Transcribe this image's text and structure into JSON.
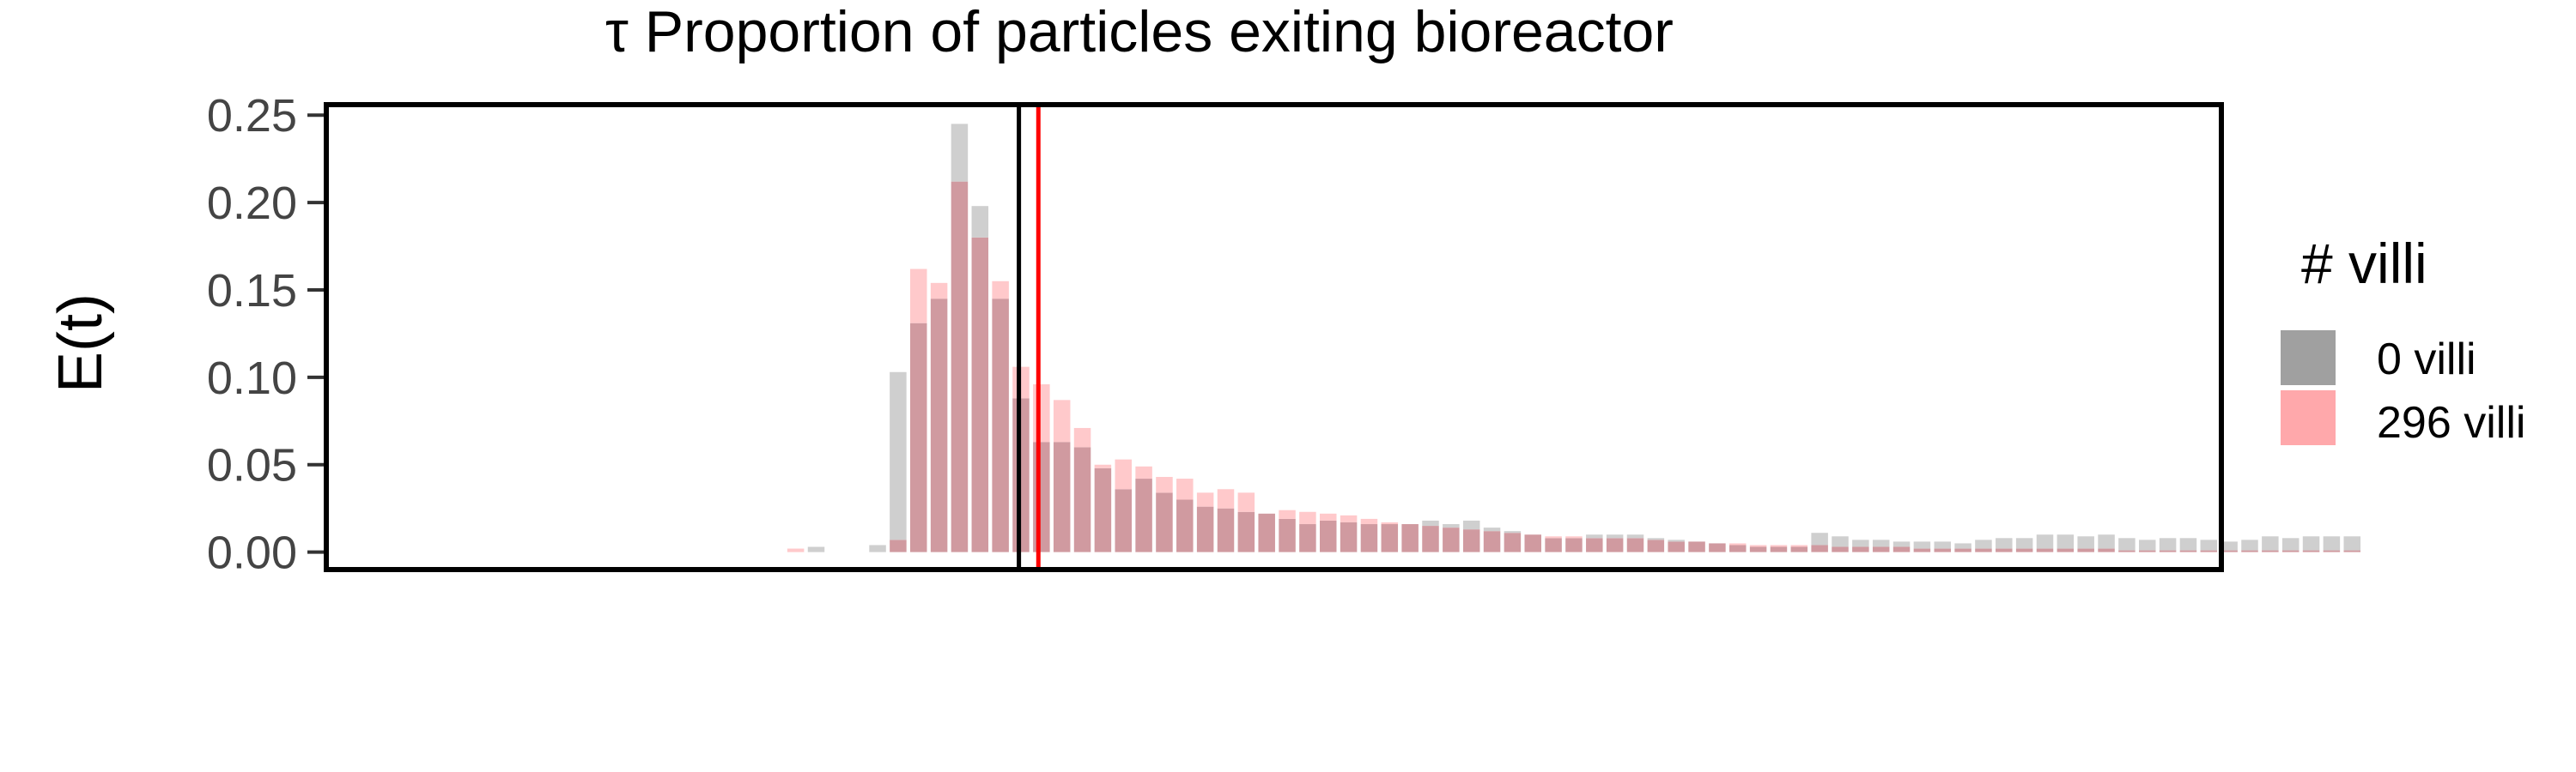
{
  "chart_data": {
    "type": "bar",
    "title": "τ Proportion of particles exiting bioreactor",
    "ylabel": "E(t)",
    "xlabel": "",
    "ylim": [
      -0.01,
      0.256
    ],
    "yticks": [
      0.0,
      0.05,
      0.1,
      0.15,
      0.2,
      0.25
    ],
    "ytick_labels": [
      "0.00",
      "0.05",
      "0.10",
      "0.15",
      "0.20",
      "0.25"
    ],
    "grid": false,
    "bin_count": 86,
    "legend": {
      "title": "# villi",
      "position": "right",
      "entries": [
        "0 villi",
        "296 villi"
      ]
    },
    "series": [
      {
        "name": "0 villi",
        "color": "#a0a0a0",
        "overlay_color": "#d09aa0",
        "values": [
          0,
          0,
          0,
          0,
          0,
          0,
          0,
          0,
          0,
          0,
          0.003,
          0,
          0,
          0.004,
          0.103,
          0.131,
          0.145,
          0.245,
          0.198,
          0.145,
          0.088,
          0.063,
          0.063,
          0.06,
          0.048,
          0.036,
          0.042,
          0.034,
          0.03,
          0.026,
          0.025,
          0.023,
          0.022,
          0.019,
          0.016,
          0.018,
          0.017,
          0.016,
          0.016,
          0.016,
          0.018,
          0.016,
          0.018,
          0.014,
          0.012,
          0.01,
          0.008,
          0.008,
          0.01,
          0.01,
          0.01,
          0.008,
          0.007,
          0.006,
          0.005,
          0.004,
          0.003,
          0.003,
          0.003,
          0.011,
          0.009,
          0.007,
          0.007,
          0.006,
          0.006,
          0.006,
          0.005,
          0.007,
          0.008,
          0.008,
          0.01,
          0.01,
          0.009,
          0.01,
          0.008,
          0.007,
          0.008,
          0.008,
          0.007,
          0.006,
          0.007,
          0.009,
          0.008,
          0.009,
          0.009,
          0.009
        ]
      },
      {
        "name": "296 villi",
        "color": "#ffa8ab",
        "values": [
          0,
          0,
          0,
          0,
          0,
          0,
          0,
          0,
          0,
          0.002,
          0,
          0,
          0,
          0,
          0.007,
          0.162,
          0.154,
          0.212,
          0.18,
          0.155,
          0.106,
          0.096,
          0.087,
          0.071,
          0.05,
          0.053,
          0.049,
          0.043,
          0.042,
          0.034,
          0.036,
          0.034,
          0.022,
          0.024,
          0.023,
          0.022,
          0.021,
          0.019,
          0.017,
          0.016,
          0.015,
          0.014,
          0.013,
          0.012,
          0.011,
          0.01,
          0.009,
          0.009,
          0.008,
          0.008,
          0.008,
          0.007,
          0.006,
          0.006,
          0.005,
          0.005,
          0.004,
          0.004,
          0.004,
          0.004,
          0.003,
          0.003,
          0.003,
          0.003,
          0.002,
          0.002,
          0.002,
          0.002,
          0.002,
          0.002,
          0.002,
          0.002,
          0.002,
          0.002,
          0.001,
          0.001,
          0.001,
          0.001,
          0.001,
          0.001,
          0.001,
          0.001,
          0.001,
          0.001,
          0.001,
          0.001
        ]
      }
    ],
    "vlines": [
      {
        "color": "#000000",
        "bin_position": 19.9
      },
      {
        "color": "#ff0000",
        "bin_position": 20.85
      }
    ]
  }
}
